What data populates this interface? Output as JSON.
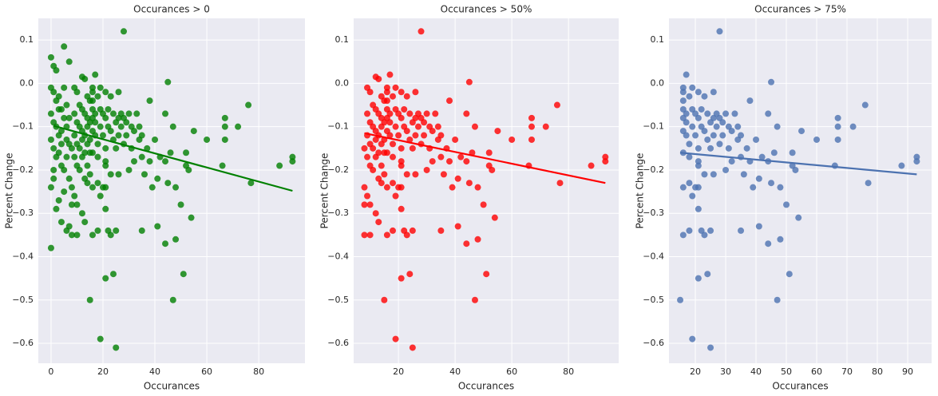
{
  "chart_data": [
    {
      "type": "scatter",
      "title": "Occurances > 0",
      "x_label": "Occurances",
      "y_label": "Percent Change",
      "color": "#008000",
      "xlim": [
        -4.9,
        97.8
      ],
      "ylim": [
        -0.646,
        0.15
      ],
      "xticks": [
        0,
        20,
        40,
        60,
        80
      ],
      "yticks": [
        0.1,
        {
          "value": 0,
          "label": "0.0"
        },
        {
          "value": -0.1,
          "label": "−0.1"
        },
        {
          "value": -0.2,
          "label": "−0.2"
        },
        {
          "value": -0.3,
          "label": "−0.3"
        },
        {
          "value": -0.4,
          "label": "−0.4"
        },
        {
          "value": -0.5,
          "label": "−0.5"
        },
        {
          "value": -0.6,
          "label": "−0.6"
        }
      ],
      "points": {
        "x": [
          28,
          17,
          16,
          16,
          19,
          21,
          23,
          26,
          45,
          16,
          18,
          16,
          17,
          16,
          17,
          19,
          20,
          21,
          22,
          24,
          25,
          26,
          27,
          28,
          29,
          30,
          31,
          33,
          34,
          38,
          44,
          16,
          17,
          18,
          19,
          20,
          21,
          22,
          23,
          24,
          25,
          26,
          27,
          28,
          29,
          31,
          32,
          34,
          35,
          37,
          40,
          42,
          44,
          46,
          47,
          52,
          55,
          60,
          67,
          67,
          67,
          72,
          76,
          66,
          53,
          52,
          16,
          18,
          21,
          21,
          23,
          26,
          30,
          32,
          35,
          36,
          38,
          41,
          45,
          48,
          50,
          54,
          77,
          88,
          93,
          93,
          16,
          18,
          19,
          20,
          21,
          21,
          16,
          18,
          23,
          25,
          35,
          41,
          44,
          48,
          51,
          24,
          21,
          15,
          47,
          19,
          25,
          22,
          39,
          9,
          10,
          12,
          13,
          14,
          11,
          12,
          13,
          14,
          15,
          9,
          10,
          11,
          12,
          13,
          14,
          15,
          9,
          10,
          11,
          12,
          13,
          14,
          15,
          8,
          9,
          10,
          11,
          12,
          13,
          14,
          15,
          8,
          9,
          10,
          12,
          13,
          14,
          8,
          10,
          8,
          15,
          0,
          1,
          5,
          7,
          2,
          0,
          1,
          2,
          3,
          4,
          5,
          6,
          7,
          0,
          1,
          2,
          3,
          4,
          5,
          6,
          7,
          0,
          1,
          2,
          3,
          4,
          5,
          6,
          7,
          0,
          1,
          2,
          3,
          4,
          5,
          6,
          7,
          0,
          1,
          3,
          4,
          6
        ],
        "values": [
          0.12,
          0.02,
          -0.01,
          -0.02,
          -0.01,
          -0.02,
          -0.03,
          -0.02,
          0.003,
          -0.04,
          -0.03,
          -0.06,
          -0.07,
          -0.08,
          -0.09,
          -0.06,
          -0.07,
          -0.08,
          -0.06,
          -0.07,
          -0.09,
          -0.08,
          -0.07,
          -0.08,
          -0.09,
          -0.07,
          -0.1,
          -0.07,
          -0.1,
          -0.04,
          -0.07,
          -0.11,
          -0.12,
          -0.14,
          -0.1,
          -0.12,
          -0.15,
          -0.1,
          -0.11,
          -0.13,
          -0.15,
          -0.12,
          -0.1,
          -0.14,
          -0.12,
          -0.15,
          -0.11,
          -0.13,
          -0.12,
          -0.15,
          -0.13,
          -0.17,
          -0.18,
          -0.16,
          -0.1,
          -0.16,
          -0.11,
          -0.13,
          -0.08,
          -0.1,
          -0.13,
          -0.1,
          -0.05,
          -0.19,
          -0.2,
          -0.19,
          -0.16,
          -0.17,
          -0.19,
          -0.18,
          -0.21,
          -0.21,
          -0.2,
          -0.18,
          -0.17,
          -0.21,
          -0.18,
          -0.22,
          -0.23,
          -0.24,
          -0.28,
          -0.31,
          -0.23,
          -0.19,
          -0.17,
          -0.18,
          -0.24,
          -0.23,
          -0.26,
          -0.24,
          -0.24,
          -0.29,
          -0.35,
          -0.34,
          -0.35,
          -0.34,
          -0.34,
          -0.33,
          -0.37,
          -0.36,
          -0.44,
          -0.44,
          -0.45,
          -0.5,
          -0.5,
          -0.59,
          -0.61,
          -0.34,
          -0.24,
          -0.01,
          -0.02,
          0.015,
          0.01,
          -0.03,
          -0.05,
          -0.06,
          -0.07,
          -0.08,
          -0.04,
          -0.07,
          -0.09,
          -0.1,
          -0.11,
          -0.12,
          -0.1,
          -0.09,
          -0.12,
          -0.14,
          -0.15,
          -0.13,
          -0.16,
          -0.14,
          -0.13,
          -0.15,
          -0.17,
          -0.19,
          -0.2,
          -0.17,
          -0.22,
          -0.19,
          -0.21,
          -0.24,
          -0.26,
          -0.28,
          -0.3,
          -0.32,
          -0.23,
          -0.35,
          -0.35,
          -0.28,
          -0.16,
          0.06,
          0.04,
          0.085,
          0.05,
          0.03,
          -0.01,
          -0.02,
          -0.04,
          -0.03,
          -0.06,
          -0.01,
          -0.05,
          -0.08,
          -0.07,
          -0.09,
          -0.1,
          -0.12,
          -0.11,
          -0.08,
          -0.13,
          -0.14,
          -0.13,
          -0.15,
          -0.17,
          -0.16,
          -0.19,
          -0.2,
          -0.17,
          -0.22,
          -0.24,
          -0.22,
          -0.29,
          -0.27,
          -0.32,
          -0.25,
          -0.34,
          -0.33,
          -0.38,
          -0.2,
          -0.06,
          -0.14,
          -0.1
        ]
      },
      "fit": {
        "x": [
          1,
          93
        ],
        "values": [
          -0.098,
          -0.248
        ]
      }
    },
    {
      "type": "scatter",
      "title": "Occurances > 50%",
      "x_label": "Occurances",
      "y_label": "Percent Change",
      "color": "#ff0000",
      "xlim": [
        4.2,
        97.7
      ],
      "ylim": [
        -0.646,
        0.15
      ],
      "xticks": [
        20,
        40,
        60,
        80
      ],
      "yticks": [
        0.1,
        {
          "value": 0,
          "label": "0.0"
        },
        {
          "value": -0.1,
          "label": "−0.1"
        },
        {
          "value": -0.2,
          "label": "−0.2"
        },
        {
          "value": -0.3,
          "label": "−0.3"
        },
        {
          "value": -0.4,
          "label": "−0.4"
        },
        {
          "value": -0.5,
          "label": "−0.5"
        },
        {
          "value": -0.6,
          "label": "−0.6"
        }
      ],
      "points": {
        "x": [
          28,
          17,
          16,
          16,
          19,
          21,
          23,
          26,
          45,
          16,
          18,
          16,
          17,
          16,
          17,
          19,
          20,
          21,
          22,
          24,
          25,
          26,
          27,
          28,
          29,
          30,
          31,
          33,
          34,
          38,
          44,
          16,
          17,
          18,
          19,
          20,
          21,
          22,
          23,
          24,
          25,
          26,
          27,
          28,
          29,
          31,
          32,
          34,
          35,
          37,
          40,
          42,
          44,
          46,
          47,
          52,
          55,
          60,
          67,
          67,
          67,
          72,
          76,
          66,
          53,
          52,
          16,
          18,
          21,
          21,
          23,
          26,
          30,
          32,
          35,
          36,
          38,
          41,
          45,
          48,
          50,
          54,
          77,
          88,
          93,
          93,
          16,
          18,
          19,
          20,
          21,
          21,
          16,
          18,
          23,
          25,
          35,
          41,
          44,
          48,
          51,
          24,
          21,
          15,
          47,
          19,
          25,
          22,
          39,
          9,
          10,
          12,
          13,
          14,
          11,
          12,
          13,
          14,
          15,
          9,
          10,
          11,
          12,
          13,
          14,
          15,
          9,
          10,
          11,
          12,
          13,
          14,
          15,
          8,
          9,
          10,
          11,
          12,
          13,
          14,
          15,
          8,
          9,
          10,
          12,
          13,
          14,
          8,
          10,
          8,
          15
        ],
        "values": [
          0.12,
          0.02,
          -0.01,
          -0.02,
          -0.01,
          -0.02,
          -0.03,
          -0.02,
          0.003,
          -0.04,
          -0.03,
          -0.06,
          -0.07,
          -0.08,
          -0.09,
          -0.06,
          -0.07,
          -0.08,
          -0.06,
          -0.07,
          -0.09,
          -0.08,
          -0.07,
          -0.08,
          -0.09,
          -0.07,
          -0.1,
          -0.07,
          -0.1,
          -0.04,
          -0.07,
          -0.11,
          -0.12,
          -0.14,
          -0.1,
          -0.12,
          -0.15,
          -0.1,
          -0.11,
          -0.13,
          -0.15,
          -0.12,
          -0.1,
          -0.14,
          -0.12,
          -0.15,
          -0.11,
          -0.13,
          -0.12,
          -0.15,
          -0.13,
          -0.17,
          -0.18,
          -0.16,
          -0.1,
          -0.16,
          -0.11,
          -0.13,
          -0.08,
          -0.1,
          -0.13,
          -0.1,
          -0.05,
          -0.19,
          -0.2,
          -0.19,
          -0.16,
          -0.17,
          -0.19,
          -0.18,
          -0.21,
          -0.21,
          -0.2,
          -0.18,
          -0.17,
          -0.21,
          -0.18,
          -0.22,
          -0.23,
          -0.24,
          -0.28,
          -0.31,
          -0.23,
          -0.19,
          -0.17,
          -0.18,
          -0.24,
          -0.23,
          -0.26,
          -0.24,
          -0.24,
          -0.29,
          -0.35,
          -0.34,
          -0.35,
          -0.34,
          -0.34,
          -0.33,
          -0.37,
          -0.36,
          -0.44,
          -0.44,
          -0.45,
          -0.5,
          -0.5,
          -0.59,
          -0.61,
          -0.34,
          -0.24,
          -0.01,
          -0.02,
          0.015,
          0.01,
          -0.03,
          -0.05,
          -0.06,
          -0.07,
          -0.08,
          -0.04,
          -0.07,
          -0.09,
          -0.1,
          -0.11,
          -0.12,
          -0.1,
          -0.09,
          -0.12,
          -0.14,
          -0.15,
          -0.13,
          -0.16,
          -0.14,
          -0.13,
          -0.15,
          -0.17,
          -0.19,
          -0.2,
          -0.17,
          -0.22,
          -0.19,
          -0.21,
          -0.24,
          -0.26,
          -0.28,
          -0.3,
          -0.32,
          -0.23,
          -0.35,
          -0.35,
          -0.28,
          -0.16
        ]
      },
      "fit": {
        "x": [
          8,
          93
        ],
        "values": [
          -0.115,
          -0.23
        ]
      }
    },
    {
      "type": "scatter",
      "title": "Occurances > 75%",
      "x_label": "Occurances",
      "y_label": "Percent Change",
      "color": "#4c72b0",
      "xlim": [
        11.3,
        97.9
      ],
      "ylim": [
        -0.646,
        0.15
      ],
      "xticks": [
        20,
        30,
        40,
        50,
        60,
        70,
        80,
        90
      ],
      "yticks": [
        0.1,
        {
          "value": 0,
          "label": "0.0"
        },
        {
          "value": -0.1,
          "label": "−0.1"
        },
        {
          "value": -0.2,
          "label": "−0.2"
        },
        {
          "value": -0.3,
          "label": "−0.3"
        },
        {
          "value": -0.4,
          "label": "−0.4"
        },
        {
          "value": -0.5,
          "label": "−0.5"
        },
        {
          "value": -0.6,
          "label": "−0.6"
        }
      ],
      "points": {
        "x": [
          28,
          17,
          16,
          16,
          19,
          21,
          23,
          26,
          45,
          16,
          18,
          16,
          17,
          16,
          17,
          19,
          20,
          21,
          22,
          24,
          25,
          26,
          27,
          28,
          29,
          30,
          31,
          33,
          34,
          38,
          44,
          16,
          17,
          18,
          19,
          20,
          21,
          22,
          23,
          24,
          25,
          26,
          27,
          28,
          29,
          31,
          32,
          34,
          35,
          37,
          40,
          42,
          44,
          46,
          47,
          52,
          55,
          60,
          67,
          67,
          67,
          72,
          76,
          66,
          53,
          52,
          16,
          18,
          21,
          21,
          23,
          26,
          30,
          32,
          35,
          36,
          38,
          41,
          45,
          48,
          50,
          54,
          77,
          88,
          93,
          93,
          16,
          18,
          19,
          20,
          21,
          21,
          16,
          18,
          23,
          25,
          35,
          41,
          44,
          48,
          51,
          24,
          21,
          15,
          47,
          19,
          25,
          22,
          39
        ],
        "values": [
          0.12,
          0.02,
          -0.01,
          -0.02,
          -0.01,
          -0.02,
          -0.03,
          -0.02,
          0.003,
          -0.04,
          -0.03,
          -0.06,
          -0.07,
          -0.08,
          -0.09,
          -0.06,
          -0.07,
          -0.08,
          -0.06,
          -0.07,
          -0.09,
          -0.08,
          -0.07,
          -0.08,
          -0.09,
          -0.07,
          -0.1,
          -0.07,
          -0.1,
          -0.04,
          -0.07,
          -0.11,
          -0.12,
          -0.14,
          -0.1,
          -0.12,
          -0.15,
          -0.1,
          -0.11,
          -0.13,
          -0.15,
          -0.12,
          -0.1,
          -0.14,
          -0.12,
          -0.15,
          -0.11,
          -0.13,
          -0.12,
          -0.15,
          -0.13,
          -0.17,
          -0.18,
          -0.16,
          -0.1,
          -0.16,
          -0.11,
          -0.13,
          -0.08,
          -0.1,
          -0.13,
          -0.1,
          -0.05,
          -0.19,
          -0.2,
          -0.19,
          -0.16,
          -0.17,
          -0.19,
          -0.18,
          -0.21,
          -0.21,
          -0.2,
          -0.18,
          -0.17,
          -0.21,
          -0.18,
          -0.22,
          -0.23,
          -0.24,
          -0.28,
          -0.31,
          -0.23,
          -0.19,
          -0.17,
          -0.18,
          -0.24,
          -0.23,
          -0.26,
          -0.24,
          -0.24,
          -0.29,
          -0.35,
          -0.34,
          -0.35,
          -0.34,
          -0.34,
          -0.33,
          -0.37,
          -0.36,
          -0.44,
          -0.44,
          -0.45,
          -0.5,
          -0.5,
          -0.59,
          -0.61,
          -0.34,
          -0.24
        ]
      },
      "fit": {
        "x": [
          15,
          93
        ],
        "values": [
          -0.16,
          -0.21
        ]
      }
    }
  ]
}
